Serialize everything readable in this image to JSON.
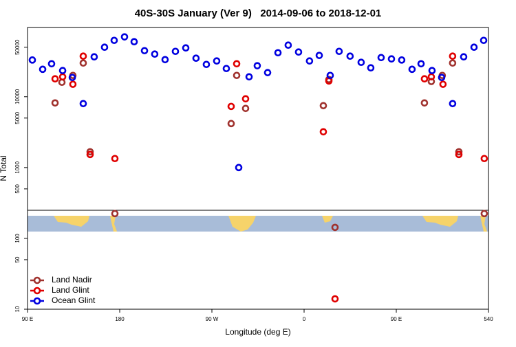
{
  "chart_data": {
    "type": "scatter",
    "title": "40S-30S January (Ver 9)   2014-09-06 to 2018-12-01",
    "x_label": "Longitude (deg E)",
    "y_label": "N Total",
    "y_log": true,
    "xlim": [
      90,
      540
    ],
    "ylim": [
      10,
      95000
    ],
    "xticks": [
      {
        "value": 90,
        "label": "90 E"
      },
      180,
      {
        "value": 270,
        "label": "90 W"
      },
      {
        "value": 360,
        "label": "0"
      },
      {
        "value": 450,
        "label": "90 E"
      },
      540
    ],
    "yticks": [
      10,
      50,
      100,
      500,
      1000,
      5000,
      10000,
      50000
    ],
    "legend_position": "bottom-left",
    "series": [
      {
        "name": "Land Nadir",
        "color": "#a0322e",
        "x": [
          116.9,
          123.6,
          134.3,
          144.4,
          151.1,
          175.3,
          288.8,
          294.2,
          302.9,
          378.8,
          384.2,
          390.2,
          477.5,
          484.2,
          494.9,
          505.0,
          511.1,
          535.9
        ],
        "values": [
          8180,
          16000,
          20000,
          29900,
          1670,
          224,
          4180,
          20000,
          6840,
          7480,
          17500,
          143,
          8180,
          16400,
          20000,
          29900,
          1670,
          224
        ]
      },
      {
        "name": "Land Glint",
        "color": "#e00000",
        "x": [
          116.9,
          124.3,
          134.3,
          144.4,
          151.1,
          175.3,
          288.8,
          294.2,
          302.9,
          378.8,
          384.2,
          390.2,
          477.5,
          484.2,
          495.6,
          505.0,
          511.1,
          535.9
        ],
        "values": [
          17900,
          19100,
          15000,
          37400,
          1530,
          1340,
          7300,
          29200,
          9350,
          3200,
          16700,
          14,
          17900,
          19100,
          15000,
          37400,
          1530,
          1340
        ]
      },
      {
        "name": "Ocean Glint",
        "color": "#0000e0",
        "x": [
          94.7,
          104.8,
          113.5,
          124.3,
          133.7,
          144.4,
          155.1,
          165.2,
          174.6,
          184.7,
          194.1,
          204.2,
          214.2,
          224.3,
          234.4,
          244.5,
          254.5,
          264.6,
          274.7,
          284.1,
          296.2,
          306.3,
          314.3,
          324.4,
          334.5,
          344.5,
          354.6,
          365.3,
          374.8,
          385.5,
          394.2,
          404.9,
          415.7,
          425.1,
          435.2,
          445.3,
          455.3,
          465.4,
          474.2,
          484.9,
          494.3,
          505.0,
          515.8,
          525.9,
          535.3
        ],
        "values": [
          33000,
          24400,
          29200,
          23400,
          18700,
          8000,
          36600,
          50000,
          62500,
          70000,
          59800,
          44700,
          40000,
          33400,
          43700,
          48900,
          35000,
          28600,
          32000,
          25000,
          1000,
          19100,
          27400,
          21900,
          41800,
          53500,
          42800,
          32000,
          38300,
          20000,
          43700,
          37400,
          30600,
          25600,
          35700,
          34200,
          33000,
          24400,
          29200,
          23400,
          18700,
          8000,
          36600,
          50000,
          62500
        ]
      }
    ]
  }
}
